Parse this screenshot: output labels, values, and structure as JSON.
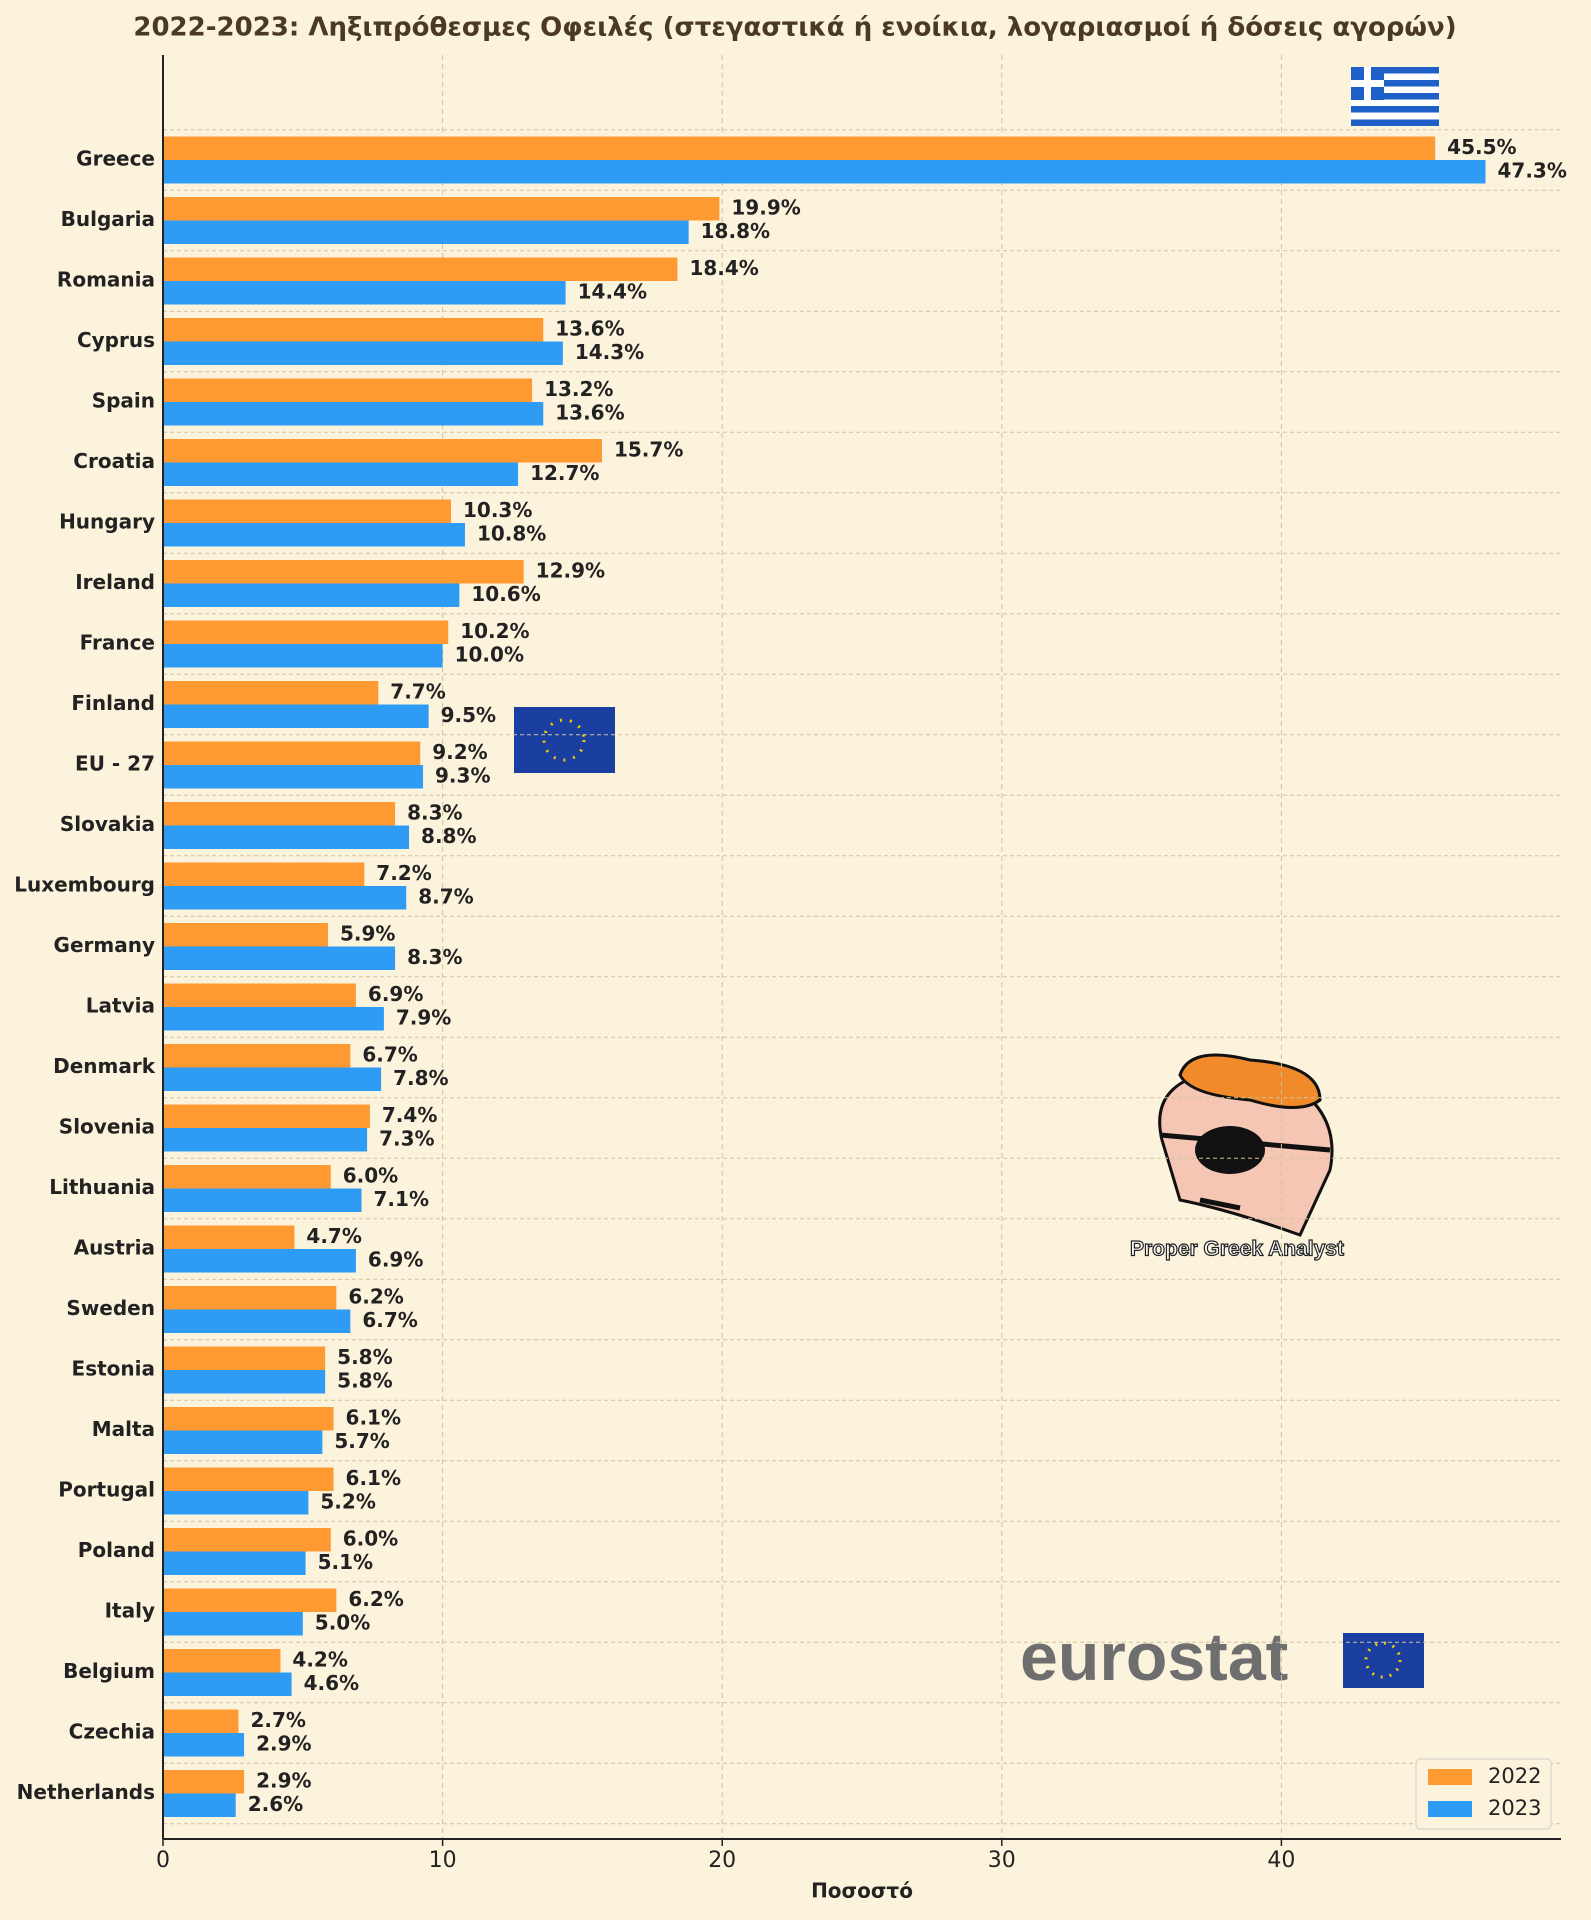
{
  "chart_data": {
    "type": "barh",
    "title": "2022-2023: Ληξιπρόθεσμες Οφειλές (στεγαστικά ή ενοίκια, λογαριασμοί ή δόσεις αγορών)",
    "xlabel": "Ποσοστό",
    "categories": [
      "Greece",
      "Bulgaria",
      "Romania",
      "Cyprus",
      "Spain",
      "Croatia",
      "Hungary",
      "Ireland",
      "France",
      "Finland",
      "EU - 27",
      "Slovakia",
      "Luxembourg",
      "Germany",
      "Latvia",
      "Denmark",
      "Slovenia",
      "Lithuania",
      "Austria",
      "Sweden",
      "Estonia",
      "Malta",
      "Portugal",
      "Poland",
      "Italy",
      "Belgium",
      "Czechia",
      "Netherlands"
    ],
    "series": [
      {
        "name": "2022",
        "color": "#ff9a33",
        "values": [
          45.5,
          19.9,
          18.4,
          13.6,
          13.2,
          15.7,
          10.3,
          12.9,
          10.2,
          7.7,
          9.2,
          8.3,
          7.2,
          5.9,
          6.9,
          6.7,
          7.4,
          6.0,
          4.7,
          6.2,
          5.8,
          6.1,
          6.1,
          6.0,
          6.2,
          4.2,
          2.7,
          2.9
        ],
        "value_labels": [
          "45.5%",
          "19.9%",
          "18.4%",
          "13.6%",
          "13.2%",
          "15.7%",
          "10.3%",
          "12.9%",
          "10.2%",
          "7.7%",
          "9.2%",
          "8.3%",
          "7.2%",
          "5.9%",
          "6.9%",
          "6.7%",
          "7.4%",
          "6.0%",
          "4.7%",
          "6.2%",
          "5.8%",
          "6.1%",
          "6.1%",
          "6.0%",
          "6.2%",
          "4.2%",
          "2.7%",
          "2.9%"
        ]
      },
      {
        "name": "2023",
        "color": "#2e9bf5",
        "values": [
          47.3,
          18.8,
          14.4,
          14.3,
          13.6,
          12.7,
          10.8,
          10.6,
          10.0,
          9.5,
          9.3,
          8.8,
          8.7,
          8.3,
          7.9,
          7.8,
          7.3,
          7.1,
          6.9,
          6.7,
          5.8,
          5.7,
          5.2,
          5.1,
          5.0,
          4.6,
          2.9,
          2.6
        ],
        "value_labels": [
          "47.3%",
          "18.8%",
          "14.4%",
          "14.3%",
          "13.6%",
          "12.7%",
          "10.8%",
          "10.6%",
          "10.0%",
          "9.5%",
          "9.3%",
          "8.8%",
          "8.7%",
          "8.3%",
          "7.9%",
          "7.8%",
          "7.3%",
          "7.1%",
          "6.9%",
          "6.7%",
          "5.8%",
          "5.7%",
          "5.2%",
          "5.1%",
          "5.0%",
          "4.6%",
          "2.9%",
          "2.6%"
        ]
      }
    ],
    "xlim": [
      0,
      50
    ],
    "xticks": [
      0,
      10,
      20,
      30,
      40
    ],
    "grid": true,
    "legend": "lower right",
    "annotations": [
      "Proper Greek Analyst",
      "eurostat"
    ]
  }
}
